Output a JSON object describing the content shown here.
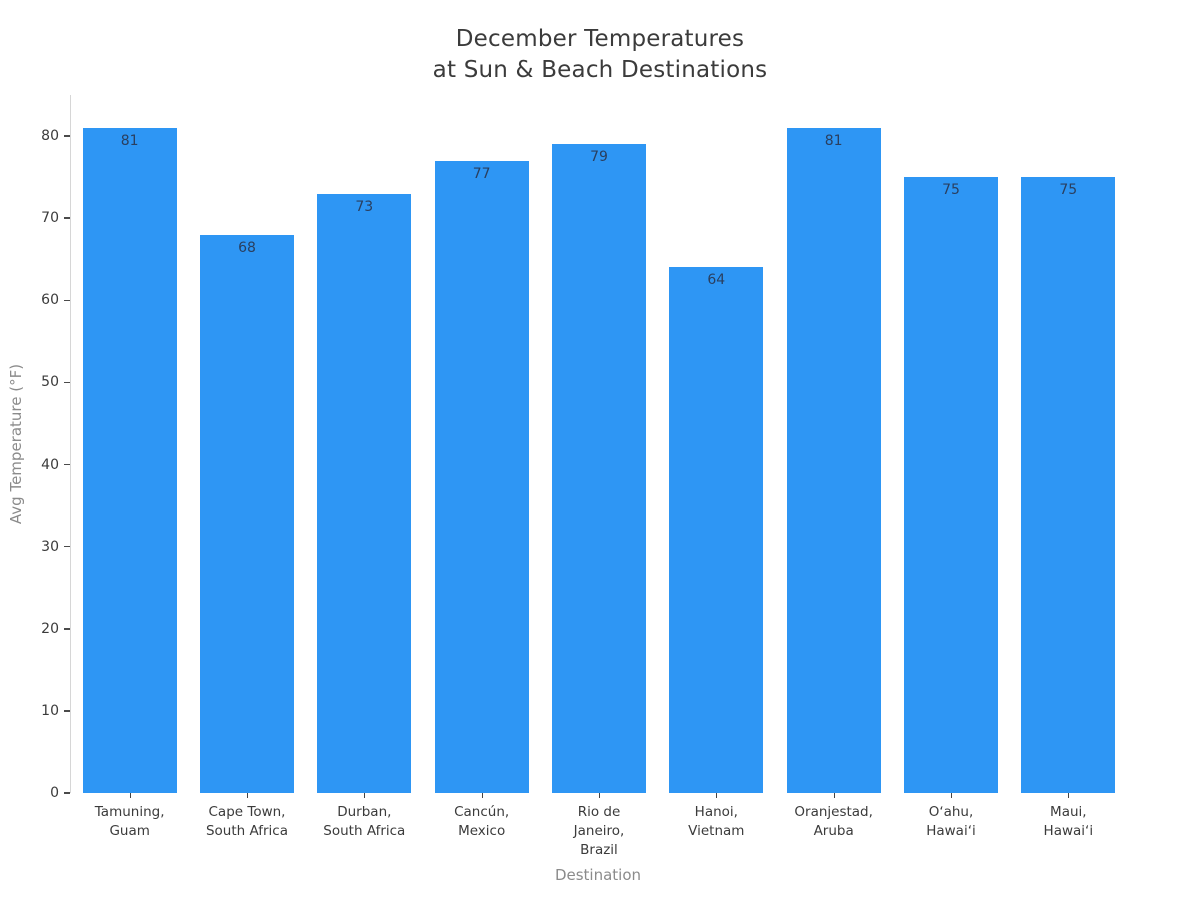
{
  "title": {
    "line1": "December Temperatures",
    "line2": "at Sun & Beach Destinations"
  },
  "chart_data": {
    "type": "bar",
    "title": "December Temperatures at Sun & Beach Destinations",
    "categories": [
      "Tamuning,\nGuam",
      "Cape Town,\nSouth Africa",
      "Durban,\nSouth Africa",
      "Cancún,\nMexico",
      "Rio de\nJaneiro,\nBrazil",
      "Hanoi,\nVietnam",
      "Oranjestad,\nAruba",
      "Oʻahu,\nHawaiʻi",
      "Maui,\nHawaiʻi"
    ],
    "values": [
      81,
      68,
      73,
      77,
      79,
      64,
      81,
      75,
      75
    ],
    "xlabel": "Destination",
    "ylabel": "Avg Temperature (°F)",
    "ylim": [
      0,
      85
    ],
    "yticks": [
      0,
      10,
      20,
      30,
      40,
      50,
      60,
      70,
      80
    ],
    "grid": false,
    "legend": "none",
    "value_labels_position": "inside-top",
    "colors": {
      "bar_fill": "#2e96f4",
      "value_label": "#2a3f5f",
      "tick_label": "#3b3b3b",
      "axis_title": "#8b8b8b",
      "axis_line": "#d6d6d6",
      "tick_mark": "#444444",
      "title_text": "#3b3b3b",
      "background": "#ffffff"
    }
  }
}
